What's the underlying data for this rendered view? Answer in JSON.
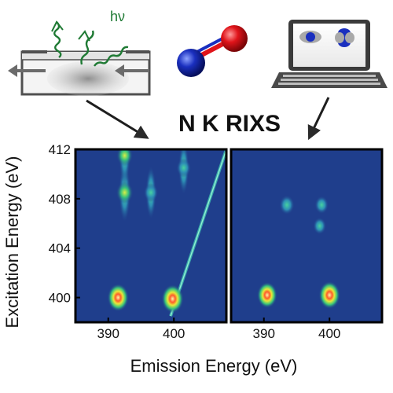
{
  "title": "N K RIXS",
  "photon_label": "hν",
  "colors": {
    "map_background": "#1f3e8c",
    "panel_border": "#000000",
    "photon_wave": "#1f7a34",
    "oxygen_atom": "#e0141a",
    "nitrogen_atom": "#1a2fbf",
    "arrow": "#2a2a2a"
  },
  "icons": [
    "sample-flow-cell-icon",
    "no-molecule-icon",
    "laptop-computer-icon"
  ],
  "chart_data": [
    {
      "type": "heatmap",
      "panel": "experiment",
      "xlabel": "Emission Energy (eV)",
      "ylabel": "Excitation Energy (eV)",
      "xlim": [
        385,
        408
      ],
      "ylim": [
        398,
        412
      ],
      "xticks": [
        390,
        400
      ],
      "yticks": [
        400,
        404,
        408,
        412
      ],
      "features": [
        {
          "x": 391.5,
          "y": 400.0,
          "intensity": 0.95
        },
        {
          "x": 399.8,
          "y": 399.9,
          "intensity": 1.0
        },
        {
          "x": 392.5,
          "y": 408.5,
          "intensity": 0.6
        },
        {
          "x": 392.5,
          "y": 411.5,
          "intensity": 0.55
        },
        {
          "x": 396.5,
          "y": 408.5,
          "intensity": 0.4
        },
        {
          "x": 401.5,
          "y": 410.5,
          "intensity": 0.4
        }
      ],
      "elastic_line": {
        "from": [
          399.5,
          398.5
        ],
        "to": [
          408,
          412
        ]
      }
    },
    {
      "type": "heatmap",
      "panel": "calculation",
      "xlabel": "Emission Energy (eV)",
      "xlim": [
        385,
        408
      ],
      "ylim": [
        398,
        412
      ],
      "xticks": [
        390,
        400
      ],
      "features": [
        {
          "x": 390.5,
          "y": 400.2,
          "intensity": 0.85
        },
        {
          "x": 400.0,
          "y": 400.2,
          "intensity": 0.95
        },
        {
          "x": 393.5,
          "y": 407.5,
          "intensity": 0.45
        },
        {
          "x": 398.8,
          "y": 407.5,
          "intensity": 0.35
        },
        {
          "x": 398.5,
          "y": 405.8,
          "intensity": 0.3
        }
      ]
    }
  ]
}
